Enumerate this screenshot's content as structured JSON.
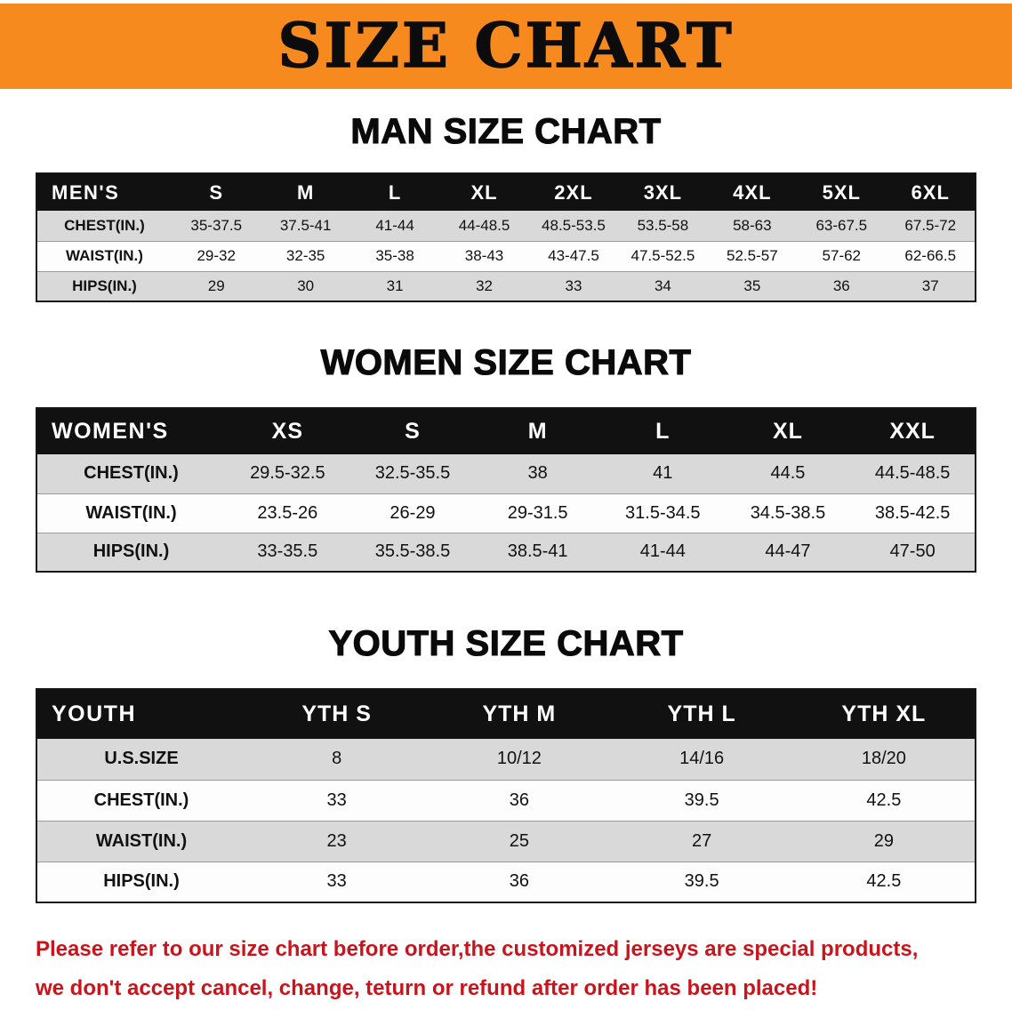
{
  "banner": {
    "title": "SIZE CHART"
  },
  "colors": {
    "banner-bg": "#f68a1e",
    "headerbar-bg": "#111111",
    "stripe-bg": "#d9d9d9",
    "notice-color": "#c8141c"
  },
  "sections": [
    {
      "heading": "MAN SIZE CHART",
      "table": {
        "header": [
          "MEN'S",
          "S",
          "M",
          "L",
          "XL",
          "2XL",
          "3XL",
          "4XL",
          "5XL",
          "6XL"
        ],
        "rows": [
          [
            "CHEST(IN.)",
            "35-37.5",
            "37.5-41",
            "41-44",
            "44-48.5",
            "48.5-53.5",
            "53.5-58",
            "58-63",
            "63-67.5",
            "67.5-72"
          ],
          [
            "WAIST(IN.)",
            "29-32",
            "32-35",
            "35-38",
            "38-43",
            "43-47.5",
            "47.5-52.5",
            "52.5-57",
            "57-62",
            "62-66.5"
          ],
          [
            "HIPS(IN.)",
            "29",
            "30",
            "31",
            "32",
            "33",
            "34",
            "35",
            "36",
            "37"
          ]
        ]
      }
    },
    {
      "heading": "WOMEN SIZE CHART",
      "table": {
        "header": [
          "WOMEN'S",
          "XS",
          "S",
          "M",
          "L",
          "XL",
          "XXL"
        ],
        "rows": [
          [
            "CHEST(IN.)",
            "29.5-32.5",
            "32.5-35.5",
            "38",
            "41",
            "44.5",
            "44.5-48.5"
          ],
          [
            "WAIST(IN.)",
            "23.5-26",
            "26-29",
            "29-31.5",
            "31.5-34.5",
            "34.5-38.5",
            "38.5-42.5"
          ],
          [
            "HIPS(IN.)",
            "33-35.5",
            "35.5-38.5",
            "38.5-41",
            "41-44",
            "44-47",
            "47-50"
          ]
        ]
      }
    },
    {
      "heading": "YOUTH SIZE CHART",
      "table": {
        "header": [
          "YOUTH",
          "YTH S",
          "YTH M",
          "YTH L",
          "YTH XL"
        ],
        "rows": [
          [
            "U.S.SIZE",
            "8",
            "10/12",
            "14/16",
            "18/20"
          ],
          [
            "CHEST(IN.)",
            "33",
            "36",
            "39.5",
            "42.5"
          ],
          [
            "WAIST(IN.)",
            "23",
            "25",
            "27",
            "29"
          ],
          [
            "HIPS(IN.)",
            "33",
            "36",
            "39.5",
            "42.5"
          ]
        ]
      }
    }
  ],
  "footer": {
    "line1": "Please refer to our size chart before order,the customized jerseys are special products,",
    "line2": "we don't accept cancel, change, teturn or refund after order has been placed!"
  }
}
